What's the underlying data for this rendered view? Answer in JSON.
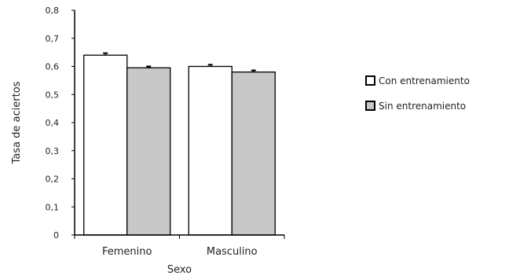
{
  "chart_data": {
    "type": "bar",
    "categories": [
      "Femenino",
      "Masculino"
    ],
    "series": [
      {
        "name": "Con entrenamiento",
        "values": [
          0.64,
          0.6
        ],
        "errors": [
          0.007,
          0.006
        ],
        "color": "#ffffff"
      },
      {
        "name": "Sin entrenamiento",
        "values": [
          0.595,
          0.58
        ],
        "errors": [
          0.005,
          0.006
        ],
        "color": "#c8c8c8"
      }
    ],
    "xlabel": "Sexo",
    "ylabel": "Tasa de aciertos",
    "ylim": [
      0,
      0.8
    ],
    "yticks": [
      "0",
      "0,1",
      "0,2",
      "0,3",
      "0,4",
      "0,5",
      "0,6",
      "0,7",
      "0,8"
    ],
    "grid": false,
    "legend_position": "right",
    "bar_edge_color": "#000000"
  }
}
